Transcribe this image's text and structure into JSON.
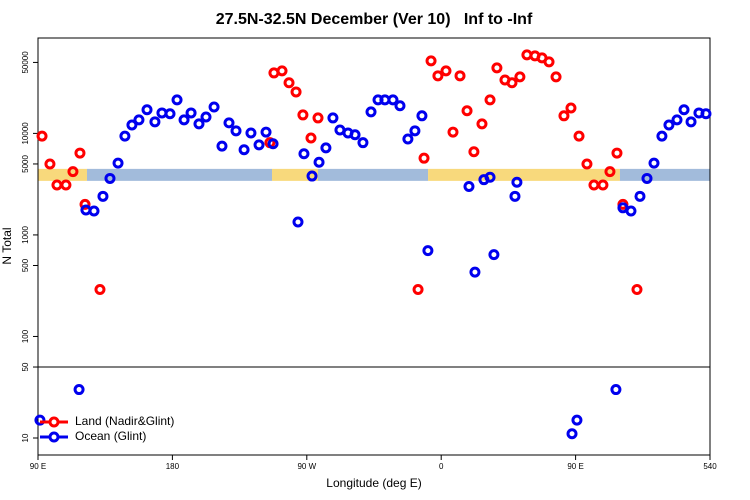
{
  "chart_data": {
    "type": "scatter",
    "title": "27.5N-32.5N December (Ver 10)   Inf to -Inf",
    "xlabel": "Longitude (deg E)",
    "ylabel": "N Total",
    "xlim": [
      90,
      540
    ],
    "xticks": [
      {
        "value": 90,
        "label": "90 E"
      },
      180,
      {
        "value": 270,
        "label": "90 W"
      },
      {
        "value": 360,
        "label": "0"
      },
      {
        "value": 450,
        "label": "90 E"
      },
      540
    ],
    "xtick_labels_override": null,
    "ylim": [
      6.8,
      87000
    ],
    "yscale": "log",
    "yticks": [
      10,
      50,
      100,
      500,
      1000,
      5000,
      10000,
      50000
    ],
    "separator_at": 50,
    "legend_position": "bottom-left",
    "band_y": 3900,
    "band_segments": [
      {
        "color": "#f8d97c",
        "x": [
          90,
          122.8
        ]
      },
      {
        "color": "#a2bbdb",
        "x": [
          122.8,
          246.7
        ]
      },
      {
        "color": "#f8d97c",
        "x": [
          246.7,
          277.5
        ]
      },
      {
        "color": "#a2bbdb",
        "x": [
          277.5,
          351.2
        ]
      },
      {
        "color": "#f8d97c",
        "x": [
          351.2,
          479.7
        ]
      },
      {
        "color": "#a2bbdb",
        "x": [
          479.7,
          540
        ]
      }
    ],
    "series": [
      {
        "name": "Land (Nadir&Glint)",
        "color": "#ff0000",
        "x": [
          92.7,
          98,
          102.7,
          108.7,
          113.4,
          118.1,
          121.5,
          131.5,
          245.3,
          248,
          253.4,
          258.1,
          262.8,
          267.4,
          272.8,
          277.5,
          344.5,
          348.5,
          353.2,
          357.8,
          363.2,
          367.9,
          372.6,
          377.3,
          381.9,
          387.3,
          392.7,
          397.3,
          402.7,
          407.4,
          412.7,
          417.4,
          422.8,
          427.5,
          432.2,
          436.9,
          442.2,
          446.9,
          452.3,
          457.6,
          462.3,
          468.3,
          473,
          477.7,
          481.7,
          491.1
        ],
        "values": [
          9400,
          5000,
          3100,
          3100,
          4200,
          6400,
          2000,
          290,
          8100,
          39400,
          41300,
          31500,
          25600,
          15200,
          9000,
          14200,
          290,
          5700,
          51800,
          36900,
          41300,
          10300,
          36900,
          16700,
          6600,
          12400,
          21400,
          44200,
          33600,
          31500,
          36000,
          59300,
          58000,
          55400,
          50600,
          36000,
          14900,
          17800,
          9400,
          5000,
          3100,
          3100,
          4200,
          6400,
          2000,
          290
        ]
      },
      {
        "name": "Ocean (Glint)",
        "color": "#0000ee",
        "x": [
          91.3,
          117.5,
          122.1,
          127.5,
          133.5,
          138.2,
          143.6,
          148.2,
          152.9,
          157.6,
          163,
          168.3,
          173,
          178.4,
          183.1,
          187.8,
          192.5,
          197.8,
          202.5,
          207.9,
          213.2,
          217.9,
          222.6,
          228,
          232.6,
          238,
          242.7,
          247.4,
          264.1,
          268.1,
          273.5,
          278.2,
          282.8,
          287.5,
          292.2,
          297.6,
          302.3,
          307.6,
          313,
          317.7,
          322.3,
          327.7,
          332.4,
          337.7,
          342.4,
          347.1,
          351.1,
          378.6,
          382.6,
          388.6,
          392.7,
          395.3,
          409.4,
          410.7,
          447.6,
          450.9,
          477,
          481.7,
          487.1,
          493.1,
          497.8,
          502.5,
          507.8,
          512.5,
          517.9,
          522.6,
          527.3,
          532.6,
          537.3
        ],
        "values": [
          15,
          30,
          1760,
          1720,
          2400,
          3600,
          5100,
          9400,
          12100,
          13600,
          17100,
          13000,
          15900,
          15600,
          21400,
          13600,
          15900,
          12400,
          14500,
          18200,
          7500,
          12700,
          10600,
          6900,
          10100,
          7700,
          10300,
          7900,
          1340,
          6300,
          3800,
          5200,
          7200,
          14200,
          10800,
          10100,
          9700,
          8100,
          16300,
          21400,
          21400,
          21400,
          18700,
          8800,
          10600,
          14900,
          700,
          3000,
          430,
          3500,
          3700,
          640,
          2400,
          3300,
          11,
          15,
          30,
          1850,
          1720,
          2400,
          3600,
          5100,
          9400,
          12100,
          13600,
          17100,
          13000,
          15900,
          15600
        ]
      }
    ]
  }
}
